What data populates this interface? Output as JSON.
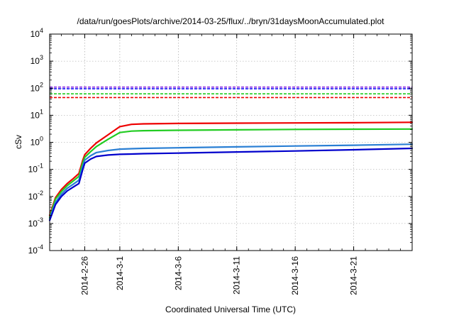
{
  "chart_data": {
    "type": "line",
    "title": "/data/run/goesPlots/archive/2014-03-25/flux/../bryn/31daysMoonAccumulated.plot",
    "xlabel": "Coordinated Universal Time (UTC)",
    "ylabel": "cSv",
    "yscale": "log",
    "ylim": [
      0.0001,
      10000
    ],
    "xlim": [
      "2014-02-23",
      "2014-03-26"
    ],
    "grid": true,
    "legend": "none",
    "x_ticks": [
      "2014-2-26",
      "2014-3-1",
      "2014-3-6",
      "2014-3-11",
      "2014-3-16",
      "2014-3-21"
    ],
    "y_ticks": [
      {
        "base": "10",
        "exp": "-4",
        "value": 0.0001
      },
      {
        "base": "10",
        "exp": "-3",
        "value": 0.001
      },
      {
        "base": "10",
        "exp": "-2",
        "value": 0.01
      },
      {
        "base": "10",
        "exp": "-1",
        "value": 0.1
      },
      {
        "base": "10",
        "exp": "0",
        "value": 1
      },
      {
        "base": "10",
        "exp": "1",
        "value": 10
      },
      {
        "base": "10",
        "exp": "2",
        "value": 100
      },
      {
        "base": "10",
        "exp": "3",
        "value": 1000
      },
      {
        "base": "10",
        "exp": "4",
        "value": 10000
      }
    ],
    "thresholds": [
      {
        "value": 110,
        "color": "#8a2be2"
      },
      {
        "value": 95,
        "color": "#1a1aff"
      },
      {
        "value": 62,
        "color": "#22cc22"
      },
      {
        "value": 45,
        "color": "#ee0000"
      }
    ],
    "series": [
      {
        "color": "#ee0000",
        "x": [
          "2014-02-23",
          "2014-02-23T12:00",
          "2014-02-24",
          "2014-02-24T12:00",
          "2014-02-25",
          "2014-02-25T12:00",
          "2014-02-25T20:00",
          "2014-02-26",
          "2014-02-26T12:00",
          "2014-02-27",
          "2014-02-28",
          "2014-03-01",
          "2014-03-02",
          "2014-03-03",
          "2014-03-06",
          "2014-03-11",
          "2014-03-16",
          "2014-03-21",
          "2014-03-26"
        ],
        "values": [
          0.002,
          0.009,
          0.018,
          0.03,
          0.045,
          0.07,
          0.22,
          0.35,
          0.6,
          0.95,
          1.9,
          3.8,
          4.6,
          4.8,
          5.0,
          5.1,
          5.2,
          5.3,
          5.5
        ]
      },
      {
        "color": "#22cc22",
        "x": [
          "2014-02-23",
          "2014-02-23T12:00",
          "2014-02-24",
          "2014-02-24T12:00",
          "2014-02-25",
          "2014-02-25T12:00",
          "2014-02-25T20:00",
          "2014-02-26",
          "2014-02-26T12:00",
          "2014-02-27",
          "2014-02-28",
          "2014-03-01",
          "2014-03-02",
          "2014-03-03",
          "2014-03-06",
          "2014-03-11",
          "2014-03-16",
          "2014-03-21",
          "2014-03-26"
        ],
        "values": [
          0.0017,
          0.008,
          0.015,
          0.025,
          0.037,
          0.055,
          0.18,
          0.28,
          0.45,
          0.7,
          1.3,
          2.3,
          2.6,
          2.7,
          2.8,
          2.9,
          3.0,
          3.05,
          3.1
        ]
      },
      {
        "color": "#2a7fd4",
        "x": [
          "2014-02-23",
          "2014-02-23T12:00",
          "2014-02-24",
          "2014-02-24T12:00",
          "2014-02-25",
          "2014-02-25T12:00",
          "2014-02-25T20:00",
          "2014-02-26",
          "2014-02-26T12:00",
          "2014-02-27",
          "2014-02-28",
          "2014-03-01",
          "2014-03-02",
          "2014-03-03",
          "2014-03-06",
          "2014-03-11",
          "2014-03-16",
          "2014-03-21",
          "2014-03-26"
        ],
        "values": [
          0.0015,
          0.006,
          0.012,
          0.02,
          0.028,
          0.04,
          0.13,
          0.22,
          0.32,
          0.42,
          0.5,
          0.56,
          0.58,
          0.6,
          0.63,
          0.68,
          0.73,
          0.78,
          0.85
        ]
      },
      {
        "color": "#0000cc",
        "x": [
          "2014-02-23",
          "2014-02-23T12:00",
          "2014-02-24",
          "2014-02-24T12:00",
          "2014-02-25",
          "2014-02-25T12:00",
          "2014-02-25T20:00",
          "2014-02-26",
          "2014-02-26T12:00",
          "2014-02-27",
          "2014-02-28",
          "2014-03-01",
          "2014-03-02",
          "2014-03-03",
          "2014-03-06",
          "2014-03-11",
          "2014-03-16",
          "2014-03-21",
          "2014-03-26"
        ],
        "values": [
          0.0013,
          0.005,
          0.01,
          0.016,
          0.022,
          0.03,
          0.1,
          0.17,
          0.24,
          0.3,
          0.34,
          0.36,
          0.37,
          0.38,
          0.4,
          0.44,
          0.48,
          0.53,
          0.6
        ]
      }
    ]
  }
}
